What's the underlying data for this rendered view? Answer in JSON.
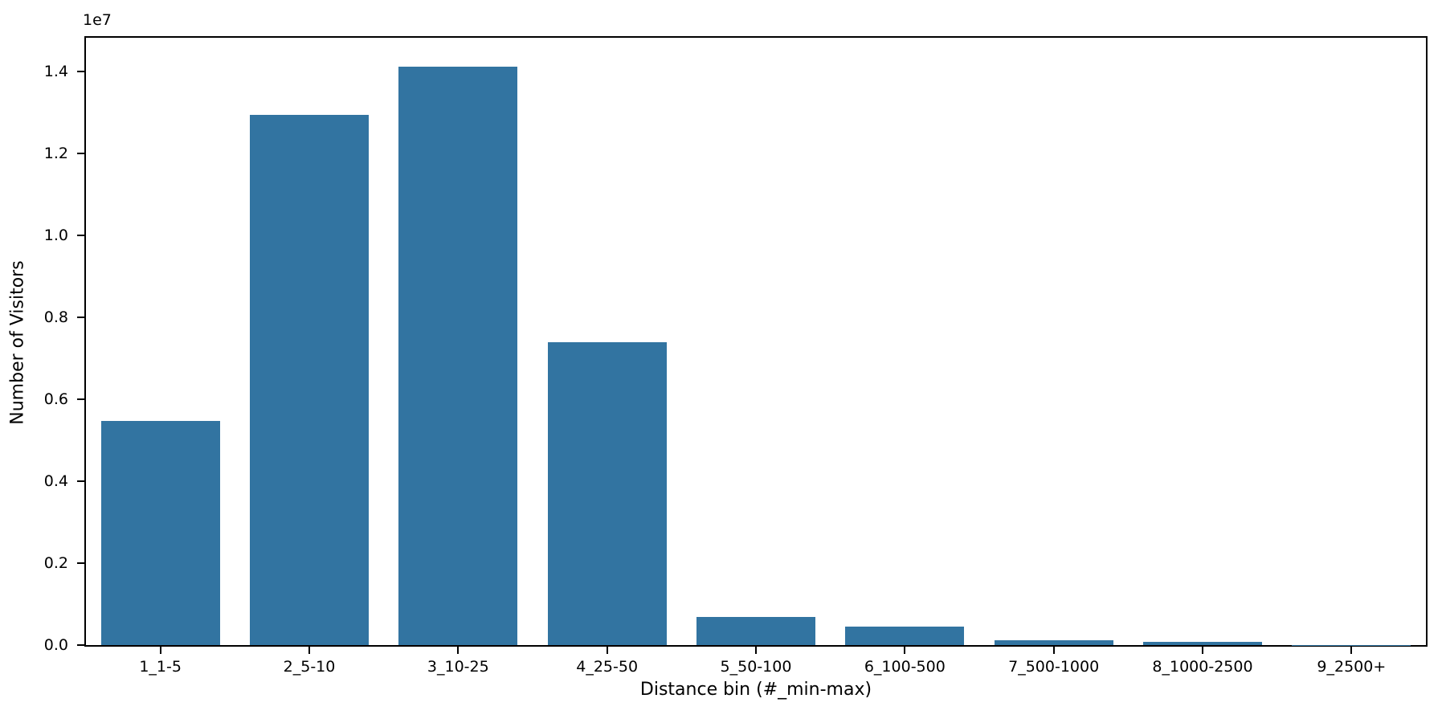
{
  "chart_data": {
    "type": "bar",
    "title": "",
    "xlabel": "Distance bin (#_min-max)",
    "ylabel": "Number of Visitors",
    "offset_text": "1e7",
    "categories": [
      "1_1-5",
      "2_5-10",
      "3_10-25",
      "4_25-50",
      "5_50-100",
      "6_100-500",
      "7_500-1000",
      "8_1000-2500",
      "9_2500+"
    ],
    "values": [
      5480000,
      12950000,
      14130000,
      7400000,
      690000,
      460000,
      110000,
      85000,
      8000
    ],
    "ylim": [
      0,
      14830000
    ],
    "yticks": [
      0,
      2000000,
      4000000,
      6000000,
      8000000,
      10000000,
      12000000,
      14000000
    ],
    "ytick_labels": [
      "0.0",
      "0.2",
      "0.4",
      "0.6",
      "0.8",
      "1.0",
      "1.2",
      "1.4"
    ],
    "bar_color": "#3274a1",
    "bar_width_fraction": 0.8,
    "grid": "off",
    "legend": "none",
    "spine_color": "#000000",
    "background_color": "#ffffff"
  }
}
